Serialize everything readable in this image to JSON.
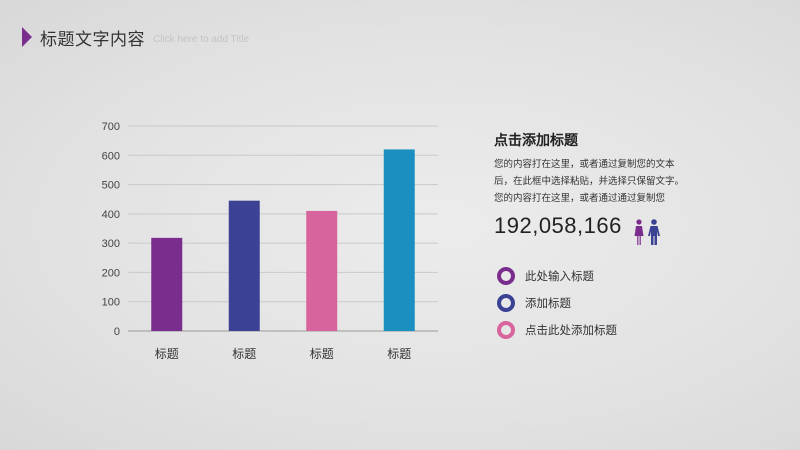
{
  "header": {
    "title": "标题文字内容",
    "subtitle": "Click here to add Title"
  },
  "chart_data": {
    "type": "bar",
    "categories": [
      "标题",
      "标题",
      "标题",
      "标题"
    ],
    "values": [
      318,
      445,
      410,
      620
    ],
    "colors": [
      "#7b2d8e",
      "#3b4294",
      "#d8649e",
      "#1b8fc0"
    ],
    "ylim": [
      0,
      700
    ],
    "yticks": [
      0,
      100,
      200,
      300,
      400,
      500,
      600,
      700
    ],
    "grid": true
  },
  "info": {
    "title": "点击添加标题",
    "body_lines": [
      "您的内容打在这里，或者通过复制您的文本",
      "后，在此框中选择粘贴，并选择只保留文字。",
      "您的内容打在这里，或者通过通过复制您"
    ],
    "stat": "192,058,166",
    "icons": [
      "female-icon",
      "male-icon"
    ],
    "icon_colors": [
      "#7b2d8e",
      "#3b4294"
    ]
  },
  "legend": [
    {
      "label": "此处输入标题",
      "color": "#7b2d8e"
    },
    {
      "label": "添加标题",
      "color": "#3b4294"
    },
    {
      "label": "点击此处添加标题",
      "color": "#d8649e"
    }
  ]
}
